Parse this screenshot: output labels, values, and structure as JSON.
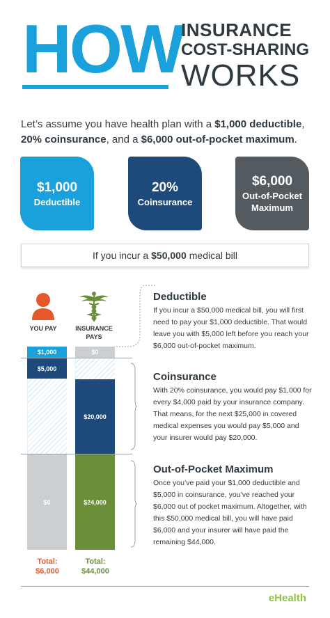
{
  "header": {
    "how": "HOW",
    "line1": "INSURANCE",
    "line2": "COST-SHARING",
    "line3": "WORKS"
  },
  "intro": {
    "p1": "Let’s assume you have health plan with a ",
    "b1": "$1,000 deductible",
    "p2": ",",
    "b2": "20% coinsurance",
    "p3": ", and a ",
    "b3": "$6,000 out-of-pocket maximum",
    "p4": "."
  },
  "boxes": [
    {
      "big": "$1,000",
      "small": "Deductible",
      "color": "#1aa0db"
    },
    {
      "big": "20%",
      "small": "Coinsurance",
      "color": "#1d4a7a"
    },
    {
      "big": "$6,000",
      "small": "Out-of-Pocket Maximum",
      "color": "#545b60"
    }
  ],
  "bill": {
    "pre": "If you incur a",
    "amount": "$50,000",
    "post": "medical bill"
  },
  "columns": {
    "you_pay_label": "YOU PAY",
    "insurance_label": "INSURANCE PAYS",
    "you": {
      "deductible": "$1,000",
      "coins": "$5,000",
      "oop": "$0"
    },
    "ins": {
      "deductible": "$0",
      "coins": "$20,000",
      "oop": "$24,000"
    },
    "total_label": "Total:",
    "you_total": "$6,000",
    "ins_total": "$44,000"
  },
  "sections": [
    {
      "heading": "Deductible",
      "text": "If you incur a $50,000 medical bill, you will first need to pay your $1,000 deductible. That would leave you with $5,000 left before you reach your $6,000 out-of-pocket maximum."
    },
    {
      "heading": "Coinsurance",
      "text": "With 20% coinsurance, you would pay $1,000 for every $4,000 paid by your insurance company.  That means, for the next $25,000 in covered medical expenses you would pay $5,000 and your insurer would pay $20,000."
    },
    {
      "heading": "Out-of-Pocket Maximum",
      "text": "Once you’ve paid your $1,000 deductible and $5,000 in coinsurance, you’ve reached your $6,000 out of pocket maximum. Altogether, with this $50,000 medical bill, you will have paid $6,000 and your insurer will have paid the remaining $44,000."
    }
  ],
  "logo": "eHealth",
  "icons": {
    "person": "person-icon",
    "caduceus": "caduceus-icon"
  },
  "colors": {
    "accent": "#1aa0db",
    "navy": "#1d4a7a",
    "grey": "#545b60",
    "green": "#6a8e3a",
    "orange": "#e4582a"
  }
}
